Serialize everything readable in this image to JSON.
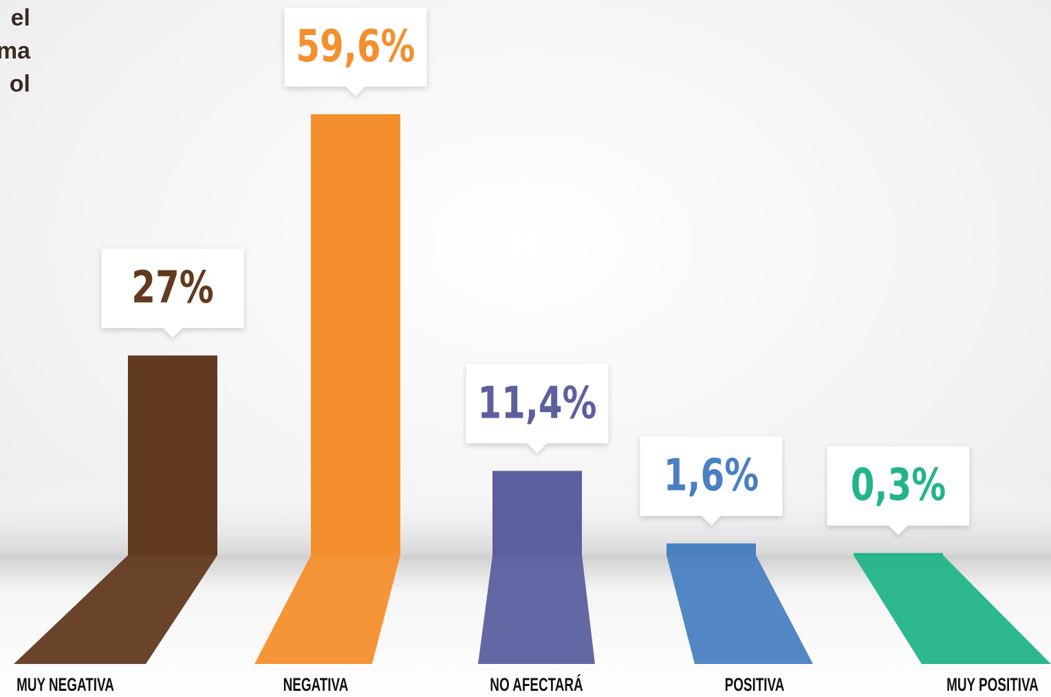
{
  "chart_data": {
    "type": "bar",
    "title_lines": [
      "el",
      "ma",
      "ol"
    ],
    "categories": [
      "MUY NEGATIVA",
      "NEGATIVA",
      "NO AFECTARÁ",
      "POSITIVA",
      "MUY POSITIVA"
    ],
    "values": [
      27,
      59.6,
      11.4,
      1.6,
      0.3
    ],
    "value_labels": [
      "27%",
      "59,6%",
      "11,4%",
      "1,6%",
      "0,3%"
    ],
    "colors": [
      "#613a1f",
      "#f48f2d",
      "#5b5f9e",
      "#4a7fc1",
      "#22b48a"
    ]
  }
}
